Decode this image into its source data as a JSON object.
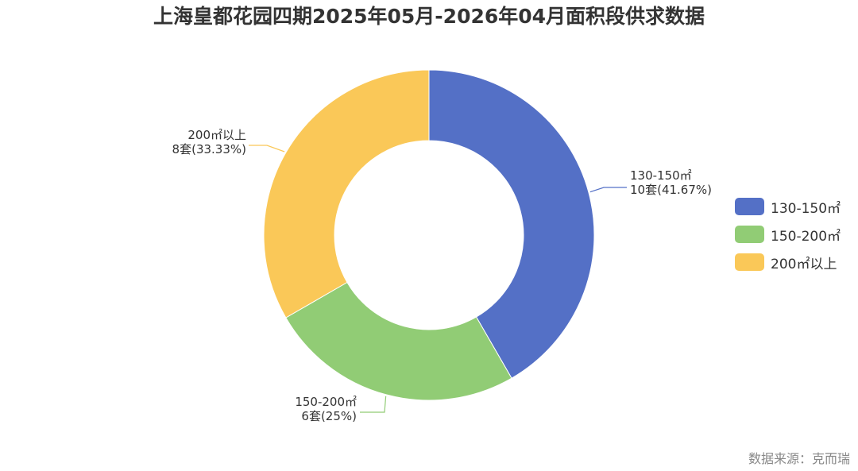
{
  "title": "上海皇都花园四期2025年05月-2026年04月面积段供求数据",
  "source": "数据来源：克而瑞",
  "chart_data": {
    "type": "pie",
    "variant": "donut",
    "unit": "套",
    "categories": [
      "130-150㎡",
      "150-200㎡",
      "200㎡以上"
    ],
    "values": [
      10,
      6,
      8
    ],
    "percent_labels": [
      "41.67%",
      "25%",
      "33.33%"
    ],
    "colors": [
      "#5470c6",
      "#91cc75",
      "#fac858"
    ],
    "legend_position": "right"
  }
}
